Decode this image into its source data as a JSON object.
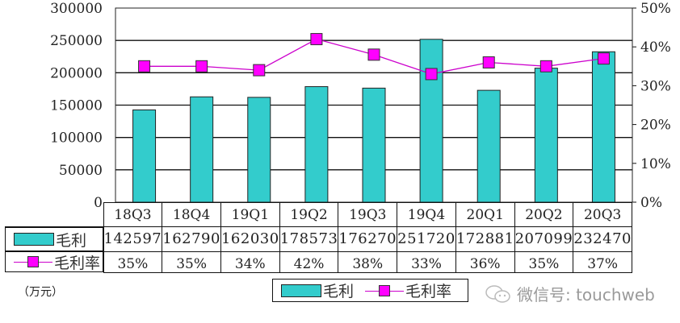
{
  "chart_data": {
    "type": "bar+line",
    "title": "",
    "categories": [
      "18Q3",
      "18Q4",
      "19Q1",
      "19Q2",
      "19Q3",
      "19Q4",
      "20Q1",
      "20Q2",
      "20Q3"
    ],
    "series": [
      {
        "name": "毛利",
        "type": "bar",
        "axis": "left",
        "color": "#33cccc",
        "values": [
          142597,
          162790,
          162030,
          178573,
          176270,
          251720,
          172881,
          207099,
          232470
        ]
      },
      {
        "name": "毛利率",
        "type": "line",
        "axis": "right",
        "color": "#ff00ff",
        "line_color": "#cc00cc",
        "marker": "square",
        "values": [
          35,
          35,
          34,
          42,
          38,
          33,
          36,
          35,
          37
        ],
        "labels": [
          "35%",
          "35%",
          "34%",
          "42%",
          "38%",
          "33%",
          "36%",
          "35%",
          "37%"
        ]
      }
    ],
    "left_axis": {
      "ylim": [
        0,
        300000
      ],
      "ticks": [
        "0",
        "50000",
        "100000",
        "150000",
        "200000",
        "250000",
        "300000"
      ]
    },
    "right_axis": {
      "ylim": [
        0,
        50
      ],
      "ticks": [
        "0%",
        "10%",
        "20%",
        "30%",
        "40%",
        "50%"
      ]
    },
    "xlabel": "",
    "ylabel": "（万元）",
    "grid": true,
    "legend_position": "bottom",
    "data_table": true
  },
  "table": {
    "header": [
      "18Q3",
      "18Q4",
      "19Q1",
      "19Q2",
      "19Q3",
      "19Q4",
      "20Q1",
      "20Q2",
      "20Q3"
    ],
    "rows": [
      {
        "label": "毛利",
        "cells": [
          "142597",
          "162790",
          "162030",
          "178573",
          "176270",
          "251720",
          "172881",
          "207099",
          "232470"
        ]
      },
      {
        "label": "毛利率",
        "cells": [
          "35%",
          "35%",
          "34%",
          "42%",
          "38%",
          "33%",
          "36%",
          "35%",
          "37%"
        ]
      }
    ]
  },
  "unit_label": "（万元）",
  "legend": {
    "bar_label": "毛利",
    "line_label": "毛利率"
  },
  "watermark": {
    "text": "微信号: touchweb",
    "icon": "wechat-icon"
  }
}
